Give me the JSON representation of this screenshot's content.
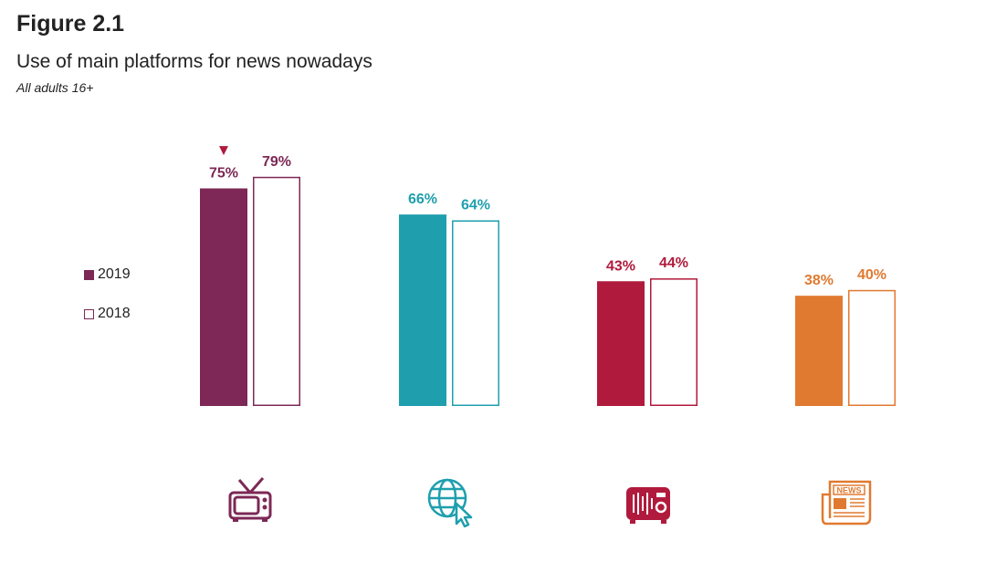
{
  "figure_number": "Figure 2.1",
  "colors": {
    "television": "#7d2856",
    "internet": "#1f9fae",
    "radio": "#b01a3c",
    "newspapers": "#e07a30",
    "text": "#222222"
  },
  "legend": {
    "current": "2019",
    "previous": "2018"
  },
  "icons": [
    "tv-icon",
    "globe-cursor-icon",
    "radio-icon",
    "newspaper-icon"
  ],
  "newspaper_icon_text": "NEWS",
  "significance_marker": "▼",
  "chart_data": {
    "type": "bar",
    "title": "Use of main platforms for news nowadays",
    "subtitle": "All adults 16+",
    "xlabel": "",
    "ylabel": "",
    "ylim": [
      0,
      100
    ],
    "grid": false,
    "legend_position": "left",
    "categories": [
      "Television",
      "Internet*",
      "Radio",
      "Newspapers"
    ],
    "series": [
      {
        "name": "2019",
        "values": [
          75,
          66,
          43,
          38
        ],
        "labels": [
          "75%",
          "66%",
          "43%",
          "38%"
        ],
        "style": "filled"
      },
      {
        "name": "2018",
        "values": [
          79,
          64,
          44,
          40
        ],
        "labels": [
          "79%",
          "64%",
          "44%",
          "40%"
        ],
        "style": "outline"
      }
    ],
    "annotations": [
      {
        "category": "Television",
        "series": "2019",
        "marker": "down-triangle"
      }
    ]
  }
}
